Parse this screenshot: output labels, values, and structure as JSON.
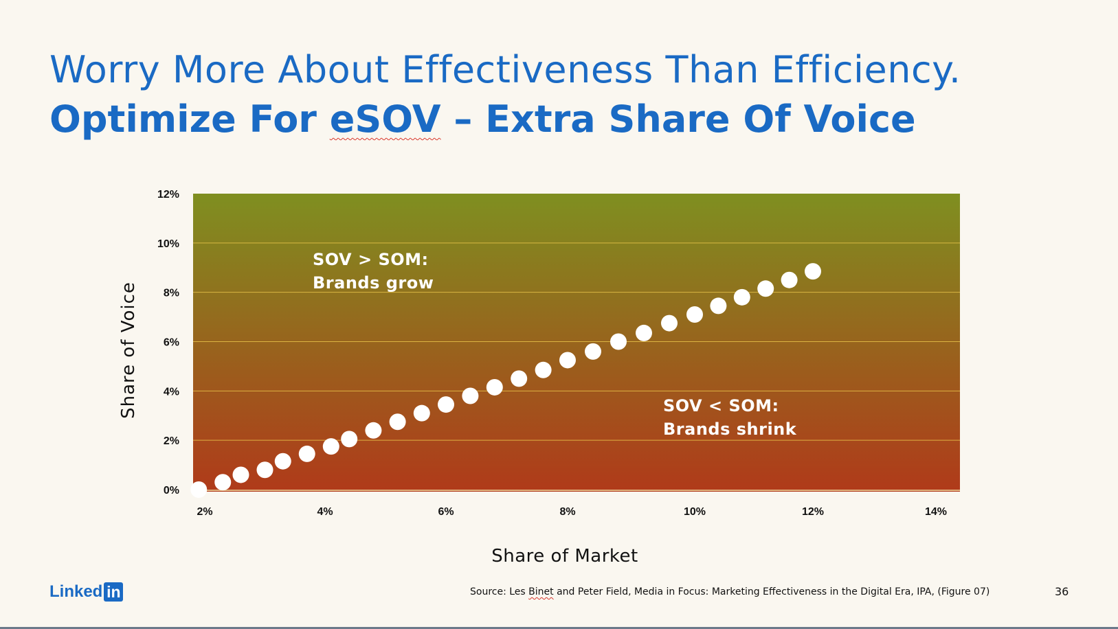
{
  "title": {
    "line1": "Worry More About Effectiveness Than Efficiency.",
    "line2_prefix": "Optimize For ",
    "line2_highlight": "eSOV",
    "line2_suffix": " – Extra Share Of Voice"
  },
  "annotations": {
    "grow_line1": "SOV > SOM:",
    "grow_line2": "Brands grow",
    "shrink_line1": "SOV < SOM:",
    "shrink_line2": "Brands shrink"
  },
  "footer": {
    "logo_text": "Linked",
    "logo_box": "in",
    "source_prefix": "Source: Les ",
    "source_name": "Binet",
    "source_suffix": " and Peter Field, Media in Focus: Marketing Effectiveness in the Digital Era, IPA, (Figure 07)",
    "page_number": "36"
  },
  "colors": {
    "title": "#1a6ac4",
    "gradient_top": "#7f8f20",
    "gradient_bottom": "#b03a1a",
    "points": "#ffffff",
    "gridlines": "#e8c24a"
  },
  "chart_data": {
    "type": "scatter",
    "xlabel": "Share of Market",
    "ylabel": "Share of Voice",
    "xlim": [
      2,
      14
    ],
    "ylim": [
      0,
      12
    ],
    "xticks": [
      "2%",
      "4%",
      "6%",
      "8%",
      "10%",
      "12%",
      "14%"
    ],
    "yticks": [
      "0%",
      "2%",
      "4%",
      "6%",
      "8%",
      "10%",
      "12%"
    ],
    "grid": true,
    "background": "vertical gradient green (top) to red (bottom)",
    "points": [
      {
        "x": 1.9,
        "y": 0.0
      },
      {
        "x": 2.3,
        "y": 0.3
      },
      {
        "x": 2.6,
        "y": 0.6
      },
      {
        "x": 3.0,
        "y": 0.8
      },
      {
        "x": 3.3,
        "y": 1.15
      },
      {
        "x": 3.7,
        "y": 1.45
      },
      {
        "x": 4.1,
        "y": 1.75
      },
      {
        "x": 4.4,
        "y": 2.05
      },
      {
        "x": 4.8,
        "y": 2.4
      },
      {
        "x": 5.2,
        "y": 2.75
      },
      {
        "x": 5.6,
        "y": 3.1
      },
      {
        "x": 6.0,
        "y": 3.45
      },
      {
        "x": 6.4,
        "y": 3.8
      },
      {
        "x": 6.8,
        "y": 4.15
      },
      {
        "x": 7.2,
        "y": 4.5
      },
      {
        "x": 7.6,
        "y": 4.85
      },
      {
        "x": 8.0,
        "y": 5.25
      },
      {
        "x": 8.4,
        "y": 5.6
      },
      {
        "x": 8.8,
        "y": 6.0
      },
      {
        "x": 9.2,
        "y": 6.35
      },
      {
        "x": 9.6,
        "y": 6.75
      },
      {
        "x": 10.0,
        "y": 7.1
      },
      {
        "x": 10.4,
        "y": 7.45
      },
      {
        "x": 10.8,
        "y": 7.8
      },
      {
        "x": 11.2,
        "y": 8.15
      },
      {
        "x": 11.6,
        "y": 8.5
      },
      {
        "x": 12.0,
        "y": 8.85
      }
    ]
  }
}
